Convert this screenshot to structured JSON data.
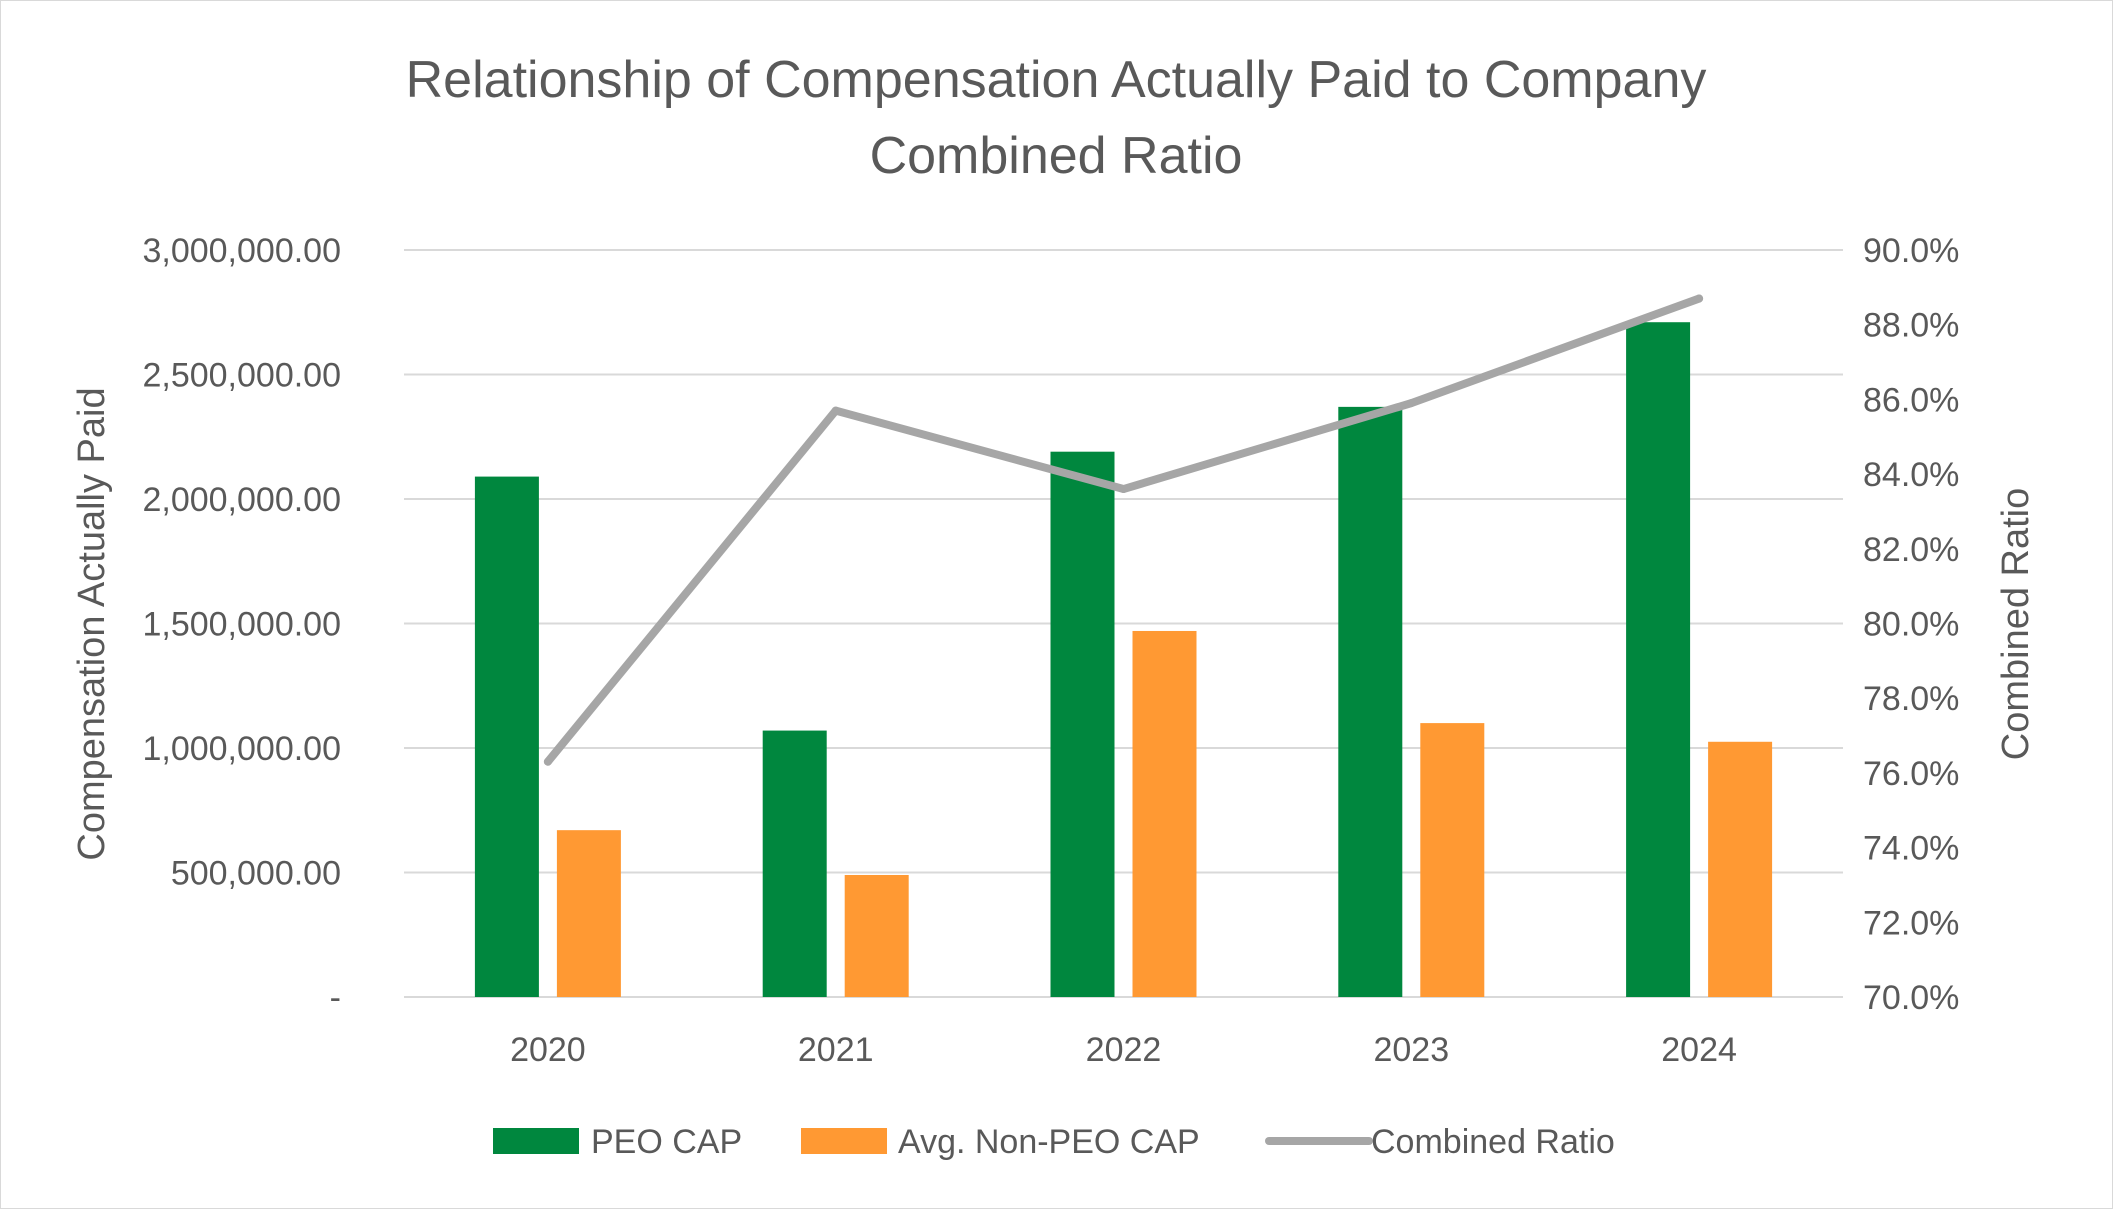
{
  "chart_data": {
    "type": "bar",
    "title_lines": [
      "Relationship of Compensation Actually Paid to Company",
      "Combined Ratio"
    ],
    "categories": [
      "2020",
      "2021",
      "2022",
      "2023",
      "2024"
    ],
    "series": [
      {
        "name": "PEO CAP",
        "kind": "bar",
        "axis": "left",
        "color": "#00873E",
        "values": [
          2090000,
          1070000,
          2190000,
          2370000,
          2710000
        ]
      },
      {
        "name": "Avg. Non-PEO CAP",
        "kind": "bar",
        "axis": "left",
        "color": "#FF9933",
        "values": [
          670000,
          490000,
          1470000,
          1100000,
          1025000
        ]
      },
      {
        "name": "Combined Ratio",
        "kind": "line",
        "axis": "right",
        "color": "#A6A6A6",
        "values": [
          76.3,
          85.7,
          83.6,
          85.9,
          88.7
        ]
      }
    ],
    "ylabel": "Compensation Actually Paid",
    "y2label": "Combined Ratio",
    "ylim": [
      0,
      3000000
    ],
    "y2lim": [
      70,
      90
    ],
    "yticks": [
      {
        "value": 0,
        "label": "-"
      },
      {
        "value": 500000,
        "label": "500,000.00"
      },
      {
        "value": 1000000,
        "label": "1,000,000.00"
      },
      {
        "value": 1500000,
        "label": "1,500,000.00"
      },
      {
        "value": 2000000,
        "label": "2,000,000.00"
      },
      {
        "value": 2500000,
        "label": "2,500,000.00"
      },
      {
        "value": 3000000,
        "label": "3,000,000.00"
      }
    ],
    "y2ticks": [
      {
        "value": 70,
        "label": "70.0%"
      },
      {
        "value": 72,
        "label": "72.0%"
      },
      {
        "value": 74,
        "label": "74.0%"
      },
      {
        "value": 76,
        "label": "76.0%"
      },
      {
        "value": 78,
        "label": "78.0%"
      },
      {
        "value": 80,
        "label": "80.0%"
      },
      {
        "value": 82,
        "label": "82.0%"
      },
      {
        "value": 84,
        "label": "84.0%"
      },
      {
        "value": 86,
        "label": "86.0%"
      },
      {
        "value": 88,
        "label": "88.0%"
      },
      {
        "value": 90,
        "label": "90.0%"
      }
    ],
    "grid": true,
    "legend_position": "bottom"
  }
}
